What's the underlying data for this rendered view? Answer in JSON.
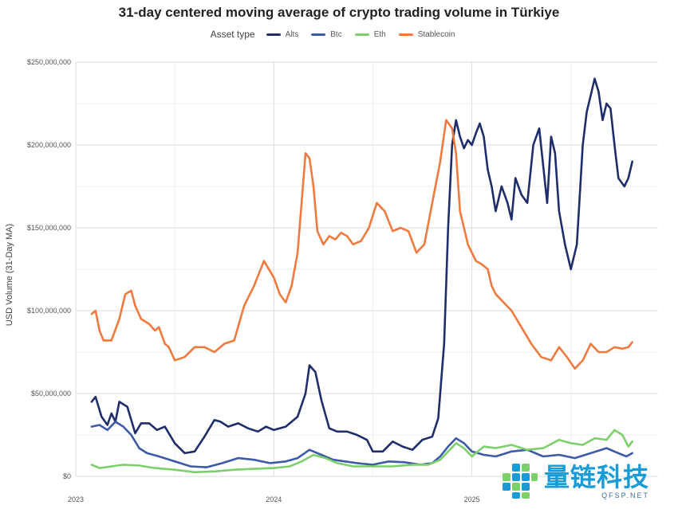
{
  "chart_data": {
    "type": "line",
    "title": "31-day centered moving average of crypto trading volume in Türkiye",
    "xlabel": "",
    "ylabel": "USD Volume (31-Day MA)",
    "legend_title": "Asset type",
    "legend_position": "top-center",
    "grid": true,
    "xlim": [
      2023.0,
      2025.94
    ],
    "ylim": [
      0,
      250000000
    ],
    "y_ticks": [
      0,
      50000000,
      100000000,
      150000000,
      200000000,
      250000000
    ],
    "y_tick_labels": [
      "$0",
      "$50,000,000",
      "$100,000,000",
      "$150,000,000",
      "$200,000,000",
      "$250,000,000"
    ],
    "x_ticks": [
      2023,
      2024,
      2025
    ],
    "x_tick_labels": [
      "2023",
      "2024",
      "2025"
    ],
    "series": [
      {
        "name": "Alts",
        "color": "#1f2d6b",
        "x": [
          2023.08,
          2023.1,
          2023.13,
          2023.16,
          2023.18,
          2023.2,
          2023.22,
          2023.26,
          2023.3,
          2023.33,
          2023.37,
          2023.41,
          2023.45,
          2023.5,
          2023.55,
          2023.6,
          2023.65,
          2023.7,
          2023.73,
          2023.77,
          2023.82,
          2023.87,
          2023.92,
          2023.96,
          2024.0,
          2024.06,
          2024.12,
          2024.16,
          2024.18,
          2024.21,
          2024.24,
          2024.28,
          2024.32,
          2024.37,
          2024.42,
          2024.47,
          2024.5,
          2024.55,
          2024.6,
          2024.65,
          2024.7,
          2024.75,
          2024.8,
          2024.83,
          2024.86,
          2024.88,
          2024.9,
          2024.92,
          2024.94,
          2024.96,
          2024.98,
          2025.0,
          2025.02,
          2025.04,
          2025.06,
          2025.08,
          2025.1,
          2025.12,
          2025.15,
          2025.18,
          2025.2,
          2025.22,
          2025.25,
          2025.28,
          2025.31,
          2025.34,
          2025.38,
          2025.4,
          2025.42,
          2025.44,
          2025.47,
          2025.5,
          2025.53,
          2025.56,
          2025.58,
          2025.6,
          2025.62,
          2025.64,
          2025.66,
          2025.68,
          2025.7,
          2025.72,
          2025.74,
          2025.77,
          2025.79,
          2025.81
        ],
        "values": [
          45000000,
          48000000,
          36000000,
          31000000,
          38000000,
          33000000,
          45000000,
          42000000,
          26000000,
          32000000,
          32000000,
          28000000,
          30000000,
          20000000,
          14000000,
          15000000,
          24000000,
          34000000,
          33000000,
          30000000,
          32000000,
          29000000,
          27000000,
          30000000,
          28000000,
          30000000,
          36000000,
          50000000,
          67000000,
          63000000,
          46000000,
          29000000,
          27000000,
          27000000,
          25000000,
          22000000,
          15000000,
          15000000,
          21000000,
          18000000,
          16000000,
          22000000,
          24000000,
          35000000,
          80000000,
          150000000,
          200000000,
          215000000,
          205000000,
          198000000,
          203000000,
          200000000,
          207000000,
          213000000,
          205000000,
          185000000,
          175000000,
          160000000,
          175000000,
          165000000,
          155000000,
          180000000,
          170000000,
          165000000,
          200000000,
          210000000,
          165000000,
          205000000,
          195000000,
          160000000,
          140000000,
          125000000,
          140000000,
          200000000,
          220000000,
          230000000,
          240000000,
          232000000,
          215000000,
          225000000,
          222000000,
          200000000,
          180000000,
          175000000,
          180000000,
          190000000
        ]
      },
      {
        "name": "Btc",
        "color": "#3d5aa9",
        "x": [
          2023.08,
          2023.12,
          2023.16,
          2023.2,
          2023.24,
          2023.28,
          2023.32,
          2023.36,
          2023.42,
          2023.5,
          2023.58,
          2023.66,
          2023.74,
          2023.82,
          2023.9,
          2023.98,
          2024.06,
          2024.12,
          2024.18,
          2024.24,
          2024.3,
          2024.36,
          2024.42,
          2024.5,
          2024.58,
          2024.66,
          2024.74,
          2024.8,
          2024.84,
          2024.88,
          2024.92,
          2024.96,
          2025.0,
          2025.06,
          2025.12,
          2025.2,
          2025.28,
          2025.36,
          2025.44,
          2025.52,
          2025.6,
          2025.68,
          2025.74,
          2025.78,
          2025.81
        ],
        "values": [
          30000000,
          31000000,
          28000000,
          33000000,
          30000000,
          25000000,
          17000000,
          14000000,
          12000000,
          9000000,
          6000000,
          5500000,
          8000000,
          11000000,
          10000000,
          8000000,
          9000000,
          11000000,
          16000000,
          13000000,
          10000000,
          9000000,
          8000000,
          7000000,
          9000000,
          8500000,
          7000000,
          8000000,
          12000000,
          18000000,
          23000000,
          20000000,
          15000000,
          13000000,
          12000000,
          15000000,
          16000000,
          12000000,
          13000000,
          11000000,
          14000000,
          17000000,
          14000000,
          12000000,
          14000000
        ]
      },
      {
        "name": "Eth",
        "color": "#7dcf6a",
        "x": [
          2023.08,
          2023.12,
          2023.18,
          2023.24,
          2023.32,
          2023.4,
          2023.5,
          2023.6,
          2023.7,
          2023.8,
          2023.9,
          2024.0,
          2024.08,
          2024.14,
          2024.2,
          2024.26,
          2024.32,
          2024.4,
          2024.5,
          2024.6,
          2024.7,
          2024.78,
          2024.84,
          2024.88,
          2024.92,
          2024.96,
          2025.0,
          2025.06,
          2025.12,
          2025.2,
          2025.28,
          2025.36,
          2025.44,
          2025.5,
          2025.56,
          2025.62,
          2025.68,
          2025.72,
          2025.76,
          2025.79,
          2025.81
        ],
        "values": [
          7000000,
          5000000,
          6000000,
          7000000,
          6500000,
          5000000,
          4000000,
          2500000,
          3000000,
          4000000,
          4500000,
          5000000,
          6000000,
          9000000,
          13000000,
          11000000,
          8000000,
          6000000,
          6000000,
          6000000,
          7000000,
          7000000,
          10000000,
          15000000,
          20000000,
          17000000,
          12000000,
          18000000,
          17000000,
          19000000,
          16000000,
          17000000,
          22000000,
          20000000,
          19000000,
          23000000,
          22000000,
          28000000,
          25000000,
          18000000,
          21000000
        ]
      },
      {
        "name": "Stablecoin",
        "color": "#f07a3e",
        "x": [
          2023.08,
          2023.1,
          2023.12,
          2023.14,
          2023.18,
          2023.22,
          2023.25,
          2023.28,
          2023.3,
          2023.33,
          2023.37,
          2023.4,
          2023.42,
          2023.45,
          2023.47,
          2023.5,
          2023.55,
          2023.6,
          2023.65,
          2023.7,
          2023.75,
          2023.8,
          2023.85,
          2023.9,
          2023.95,
          2024.0,
          2024.03,
          2024.06,
          2024.09,
          2024.12,
          2024.14,
          2024.16,
          2024.18,
          2024.2,
          2024.22,
          2024.25,
          2024.28,
          2024.31,
          2024.34,
          2024.37,
          2024.4,
          2024.44,
          2024.48,
          2024.52,
          2024.56,
          2024.6,
          2024.64,
          2024.68,
          2024.72,
          2024.76,
          2024.8,
          2024.84,
          2024.87,
          2024.9,
          2024.92,
          2024.94,
          2024.96,
          2024.98,
          2025.0,
          2025.02,
          2025.05,
          2025.08,
          2025.1,
          2025.12,
          2025.16,
          2025.2,
          2025.25,
          2025.3,
          2025.35,
          2025.4,
          2025.44,
          2025.48,
          2025.52,
          2025.56,
          2025.6,
          2025.64,
          2025.68,
          2025.72,
          2025.76,
          2025.79,
          2025.81
        ],
        "values": [
          98000000,
          100000000,
          88000000,
          82000000,
          82000000,
          95000000,
          110000000,
          112000000,
          103000000,
          95000000,
          92000000,
          88000000,
          90000000,
          80000000,
          78000000,
          70000000,
          72000000,
          78000000,
          78000000,
          75000000,
          80000000,
          82000000,
          103000000,
          115000000,
          130000000,
          120000000,
          110000000,
          105000000,
          115000000,
          135000000,
          165000000,
          195000000,
          192000000,
          175000000,
          148000000,
          140000000,
          145000000,
          143000000,
          147000000,
          145000000,
          140000000,
          142000000,
          150000000,
          165000000,
          160000000,
          148000000,
          150000000,
          148000000,
          135000000,
          140000000,
          165000000,
          190000000,
          215000000,
          210000000,
          195000000,
          160000000,
          150000000,
          140000000,
          135000000,
          130000000,
          128000000,
          125000000,
          115000000,
          110000000,
          105000000,
          100000000,
          90000000,
          80000000,
          72000000,
          70000000,
          78000000,
          72000000,
          65000000,
          70000000,
          80000000,
          75000000,
          75000000,
          78000000,
          77000000,
          78000000,
          81000000
        ]
      }
    ]
  },
  "watermark": {
    "brand_cn": "量链科技",
    "brand_url": "QFSP.NET",
    "colors": [
      "#1a9bd6",
      "#7dcf6a"
    ]
  }
}
